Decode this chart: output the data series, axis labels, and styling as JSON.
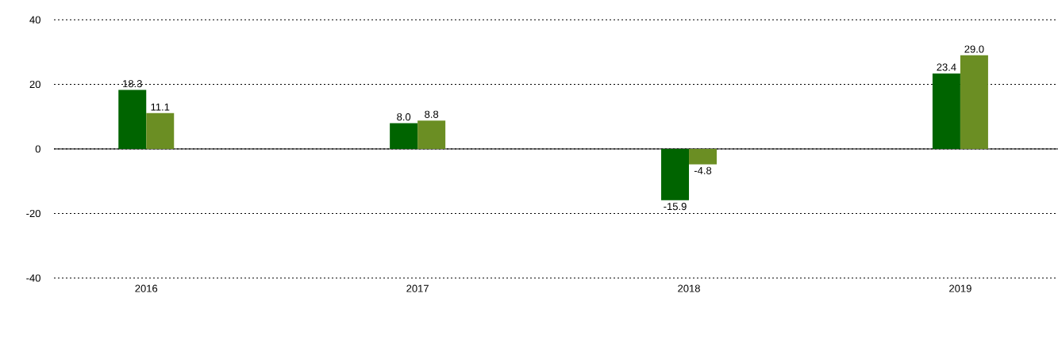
{
  "chart_data": {
    "type": "bar",
    "categories": [
      "2016",
      "2017",
      "2018",
      "2019"
    ],
    "series": [
      {
        "color": "#006400",
        "values": [
          18.3,
          8.0,
          -15.9,
          23.4
        ],
        "value_labels": [
          "18.3",
          "8.0",
          "-15.9",
          "23.4"
        ]
      },
      {
        "color": "#6b8e23",
        "values": [
          11.1,
          8.8,
          -4.8,
          29.0
        ],
        "value_labels": [
          "11.1",
          "8.8",
          "-4.8",
          "29.0"
        ]
      }
    ],
    "ylim": [
      -40,
      40
    ],
    "yticks": [
      -40,
      -20,
      0,
      20,
      40
    ],
    "grid": "y"
  }
}
